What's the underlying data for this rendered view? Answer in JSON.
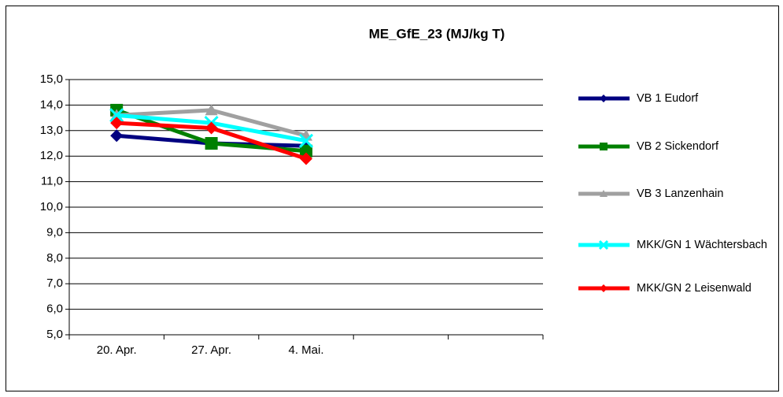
{
  "chart_data": {
    "type": "line",
    "title": "ME_GfE_23 (MJ/kg T)",
    "categories": [
      "20. Apr.",
      "27. Apr.",
      "4. Mai.",
      null,
      null
    ],
    "series": [
      {
        "name": "VB 1 Eudorf",
        "color": "#000080",
        "marker": "diamond",
        "values": [
          12.8,
          12.5,
          12.4,
          null,
          null
        ]
      },
      {
        "name": "VB 2 Sickendorf",
        "color": "#008000",
        "marker": "square",
        "values": [
          13.8,
          12.5,
          12.2,
          null,
          null
        ]
      },
      {
        "name": "VB 3 Lanzenhain",
        "color": "#a0a0a0",
        "marker": "triangle",
        "values": [
          13.6,
          13.8,
          12.8,
          null,
          null
        ]
      },
      {
        "name": "MKK/GN 1 Wächtersbach",
        "color": "#00ffff",
        "marker": "x",
        "values": [
          13.6,
          13.3,
          12.6,
          null,
          null
        ]
      },
      {
        "name": "MKK/GN 2 Leisenwald",
        "color": "#ff0000",
        "marker": "diamond",
        "values": [
          13.3,
          13.1,
          11.9,
          null,
          null
        ]
      }
    ],
    "ylim": [
      5,
      15
    ],
    "yticks": [
      {
        "value": 5,
        "label": "5,0"
      },
      {
        "value": 6,
        "label": "6,0"
      },
      {
        "value": 7,
        "label": "7,0"
      },
      {
        "value": 8,
        "label": "8,0"
      },
      {
        "value": 9,
        "label": "9,0"
      },
      {
        "value": 10,
        "label": "10,0"
      },
      {
        "value": 11,
        "label": "11,0"
      },
      {
        "value": 12,
        "label": "12,0"
      },
      {
        "value": 13,
        "label": "13,0"
      },
      {
        "value": 14,
        "label": "14,0"
      },
      {
        "value": 15,
        "label": "15,0"
      }
    ],
    "grid": true,
    "legend": "right"
  }
}
